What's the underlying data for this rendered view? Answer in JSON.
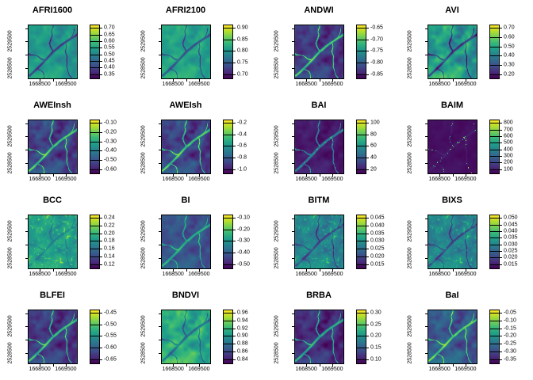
{
  "figure": {
    "background": "#ffffff",
    "text_color": "#000000",
    "description": "4x4 grid of raster map panels of spectral indices with viridis color legends"
  },
  "chart_data": {
    "type": "heatmap",
    "layout": "4x4-grid",
    "palette": "viridis",
    "grid": false,
    "legend_position": "right-of-each-panel",
    "x_ticks": [
      "1668500",
      "1669500"
    ],
    "y_ticks": [
      "2529500",
      "2528500"
    ],
    "panels": [
      {
        "title": "AFRI1600",
        "legend_ticks": [
          "0.70",
          "0.65",
          "0.60",
          "0.55",
          "0.50",
          "0.45",
          "0.40",
          "0.35"
        ],
        "render": {
          "b": 0.54,
          "t": 0.14,
          "r": -0.42,
          "s": 0,
          "dots": 0
        }
      },
      {
        "title": "AFRI2100",
        "legend_ticks": [
          "0.90",
          "0.85",
          "0.80",
          "0.75",
          "0.70"
        ],
        "render": {
          "b": 0.58,
          "t": 0.13,
          "r": -0.38,
          "s": 0,
          "dots": 0
        }
      },
      {
        "title": "ANDWI",
        "legend_ticks": [
          "-0.65",
          "-0.70",
          "-0.75",
          "-0.80",
          "-0.85"
        ],
        "render": {
          "b": 0.17,
          "t": 0.15,
          "r": 0.62,
          "s": 0,
          "dots": 0
        }
      },
      {
        "title": "AVI",
        "legend_ticks": [
          "0.70",
          "0.60",
          "0.50",
          "0.40",
          "0.30",
          "0.20"
        ],
        "render": {
          "b": 0.55,
          "t": 0.25,
          "r": -0.48,
          "s": 0,
          "dots": 0
        }
      },
      {
        "title": "AWEInsh",
        "legend_ticks": [
          "-0.10",
          "-0.20",
          "-0.30",
          "-0.40",
          "-0.50",
          "-0.60"
        ],
        "render": {
          "b": 0.2,
          "t": 0.18,
          "r": 0.6,
          "s": 0,
          "dots": 0
        }
      },
      {
        "title": "AWEIsh",
        "legend_ticks": [
          "-0.2",
          "-0.4",
          "-0.6",
          "-0.8",
          "-1.0"
        ],
        "render": {
          "b": 0.2,
          "t": 0.18,
          "r": 0.6,
          "s": 0,
          "dots": 0
        }
      },
      {
        "title": "BAI",
        "legend_ticks": [
          "100",
          "80",
          "60",
          "40",
          "20"
        ],
        "render": {
          "b": 0.07,
          "t": 0.07,
          "r": 0.4,
          "s": 0,
          "dots": 0.35
        }
      },
      {
        "title": "BAIM",
        "legend_ticks": [
          "800",
          "700",
          "600",
          "500",
          "400",
          "300",
          "200",
          "100"
        ],
        "render": {
          "b": 0.04,
          "t": 0.03,
          "r": 0.04,
          "s": 0,
          "dots": 0.85
        }
      },
      {
        "title": "BCC",
        "legend_ticks": [
          "0.24",
          "0.22",
          "0.20",
          "0.18",
          "0.16",
          "0.14",
          "0.12"
        ],
        "render": {
          "b": 0.56,
          "t": 0.13,
          "r": -0.15,
          "s": 0.3,
          "dots": 0
        }
      },
      {
        "title": "BI",
        "legend_ticks": [
          "-0.10",
          "-0.20",
          "-0.30",
          "-0.40",
          "-0.50"
        ],
        "render": {
          "b": 0.26,
          "t": 0.12,
          "r": 0.42,
          "s": 0,
          "dots": 0
        }
      },
      {
        "title": "BITM",
        "legend_ticks": [
          "0.045",
          "0.040",
          "0.035",
          "0.030",
          "0.025",
          "0.020",
          "0.015"
        ],
        "render": {
          "b": 0.45,
          "t": 0.13,
          "r": -0.3,
          "s": 0.28,
          "dots": 0
        }
      },
      {
        "title": "BIXS",
        "legend_ticks": [
          "0.050",
          "0.045",
          "0.040",
          "0.035",
          "0.030",
          "0.025",
          "0.020",
          "0.015"
        ],
        "render": {
          "b": 0.45,
          "t": 0.13,
          "r": -0.3,
          "s": 0.28,
          "dots": 0
        }
      },
      {
        "title": "BLFEI",
        "legend_ticks": [
          "-0.45",
          "-0.50",
          "-0.55",
          "-0.60",
          "-0.65"
        ],
        "render": {
          "b": 0.17,
          "t": 0.16,
          "r": 0.6,
          "s": 0,
          "dots": 0
        }
      },
      {
        "title": "BNDVI",
        "legend_ticks": [
          "0.96",
          "0.94",
          "0.92",
          "0.90",
          "0.88",
          "0.86",
          "0.84"
        ],
        "render": {
          "b": 0.62,
          "t": 0.2,
          "r": -0.32,
          "s": 0,
          "dots": 0
        }
      },
      {
        "title": "BRBA",
        "legend_ticks": [
          "0.30",
          "0.25",
          "0.20",
          "0.15",
          "0.10"
        ],
        "render": {
          "b": 0.13,
          "t": 0.15,
          "r": 0.55,
          "s": 0,
          "dots": 0
        }
      },
      {
        "title": "BaI",
        "legend_ticks": [
          "-0.05",
          "-0.10",
          "-0.15",
          "-0.20",
          "-0.25",
          "-0.30",
          "-0.35"
        ],
        "render": {
          "b": 0.28,
          "t": 0.18,
          "r": 0.55,
          "s": 0,
          "dots": 0
        }
      }
    ]
  }
}
